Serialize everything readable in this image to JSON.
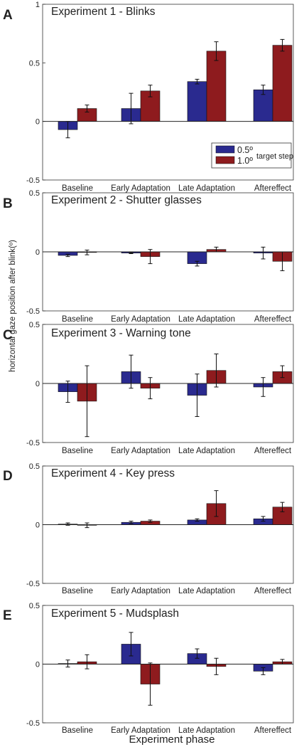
{
  "figure": {
    "xlabel": "Experiment phase",
    "ylabel": "horizontal gaze position after blink(º)",
    "legend": {
      "title": "target step",
      "items": [
        {
          "label": "0.5º",
          "color": "#2a2a8f"
        },
        {
          "label": "1.0º",
          "color": "#8e1b1e"
        }
      ]
    }
  },
  "chart_data": [
    {
      "type": "bar",
      "letter": "A",
      "title": "Experiment 1 - Blinks",
      "categories": [
        "Baseline",
        "Early Adaptation",
        "Late Adaptation",
        "Aftereffect"
      ],
      "ylim": [
        -0.5,
        1
      ],
      "yticks": [
        -0.5,
        0,
        0.5,
        1
      ],
      "ytick_labels": [
        "-0.5",
        "0",
        "0.5",
        "1"
      ],
      "legend": "bottom-right",
      "series": [
        {
          "values": [
            -0.07,
            0.11,
            0.34,
            0.27
          ],
          "errors": [
            0.07,
            0.13,
            0.02,
            0.04
          ]
        },
        {
          "values": [
            0.11,
            0.26,
            0.6,
            0.65
          ],
          "errors": [
            0.03,
            0.05,
            0.08,
            0.05
          ]
        }
      ]
    },
    {
      "type": "bar",
      "letter": "B",
      "title": "Experiment 2 - Shutter glasses",
      "categories": [
        "Baseline",
        "Early Adaptation",
        "Late Adaptation",
        "Aftereffect"
      ],
      "ylim": [
        -0.5,
        0.5
      ],
      "yticks": [
        -0.5,
        0,
        0.5
      ],
      "ytick_labels": [
        "-0.5",
        "0",
        "0.5"
      ],
      "series": [
        {
          "values": [
            -0.03,
            -0.01,
            -0.1,
            -0.01
          ],
          "errors": [
            0.01,
            0.005,
            0.02,
            0.05
          ]
        },
        {
          "values": [
            -0.005,
            -0.04,
            0.02,
            -0.08
          ],
          "errors": [
            0.02,
            0.06,
            0.02,
            0.08
          ]
        }
      ]
    },
    {
      "type": "bar",
      "letter": "C",
      "title": "Experiment 3 - Warning tone",
      "categories": [
        "Baseline",
        "Early Adaptation",
        "Late Adaptation",
        "Aftereffect"
      ],
      "ylim": [
        -0.5,
        0.5
      ],
      "yticks": [
        -0.5,
        0,
        0.5
      ],
      "ytick_labels": [
        "-0.5",
        "0",
        "0.5"
      ],
      "series": [
        {
          "values": [
            -0.07,
            0.1,
            -0.1,
            -0.03
          ],
          "errors": [
            0.09,
            0.14,
            0.18,
            0.08
          ]
        },
        {
          "values": [
            -0.15,
            -0.04,
            0.11,
            0.1
          ],
          "errors": [
            0.3,
            0.09,
            0.14,
            0.05
          ]
        }
      ]
    },
    {
      "type": "bar",
      "letter": "D",
      "title": "Experiment 4 - Key press",
      "categories": [
        "Baseline",
        "Early Adaptation",
        "Late Adaptation",
        "Aftereffect"
      ],
      "ylim": [
        -0.5,
        0.5
      ],
      "yticks": [
        -0.5,
        0,
        0.5
      ],
      "ytick_labels": [
        "-0.5",
        "0",
        "0.5"
      ],
      "series": [
        {
          "values": [
            0.005,
            0.02,
            0.04,
            0.05
          ],
          "errors": [
            0.01,
            0.01,
            0.01,
            0.02
          ]
        },
        {
          "values": [
            -0.005,
            0.03,
            0.18,
            0.15
          ],
          "errors": [
            0.02,
            0.01,
            0.11,
            0.04
          ]
        }
      ]
    },
    {
      "type": "bar",
      "letter": "E",
      "title": "Experiment 5 - Mudsplash",
      "categories": [
        "Baseline",
        "Early Adaptation",
        "Late Adaptation",
        "Aftereffect"
      ],
      "ylim": [
        -0.5,
        0.5
      ],
      "yticks": [
        -0.5,
        0,
        0.5
      ],
      "ytick_labels": [
        "-0.5",
        "0",
        "0.5"
      ],
      "series": [
        {
          "values": [
            0.005,
            0.17,
            0.09,
            -0.06
          ],
          "errors": [
            0.03,
            0.1,
            0.04,
            0.03
          ]
        },
        {
          "values": [
            0.02,
            -0.17,
            -0.02,
            0.02
          ],
          "errors": [
            0.06,
            0.18,
            0.07,
            0.02
          ]
        }
      ]
    }
  ]
}
